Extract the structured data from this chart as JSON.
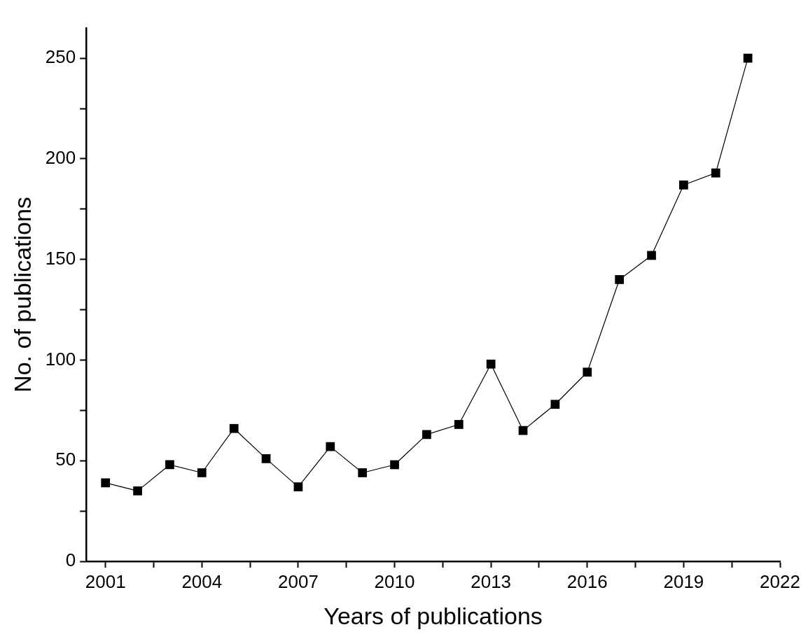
{
  "chart_data": {
    "type": "line",
    "xlabel": "Years of publications",
    "ylabel": "No. of publications",
    "x": [
      2001,
      2002,
      2003,
      2004,
      2005,
      2006,
      2007,
      2008,
      2009,
      2010,
      2011,
      2012,
      2013,
      2014,
      2015,
      2016,
      2017,
      2018,
      2019,
      2020,
      2021
    ],
    "series": [
      {
        "color": "#000000",
        "values": [
          39,
          35,
          48,
          44,
          66,
          51,
          37,
          57,
          44,
          48,
          63,
          68,
          98,
          65,
          78,
          94,
          140,
          152,
          187,
          193,
          250
        ]
      }
    ],
    "xlim": [
      2000.4,
      2022
    ],
    "xticks": [
      2001,
      {
        "value": 2002.5,
        "label": null
      },
      2004,
      {
        "value": 2005.5,
        "label": null
      },
      2007,
      {
        "value": 2008.5,
        "label": null
      },
      2010,
      {
        "value": 2011.5,
        "label": null
      },
      2013,
      {
        "value": 2014.5,
        "label": null
      },
      2016,
      {
        "value": 2017.5,
        "label": null
      },
      2019,
      {
        "value": 2020.5,
        "label": null
      },
      2022
    ],
    "ylim": [
      0,
      265
    ],
    "yticks": [
      0,
      {
        "value": 25,
        "label": null
      },
      50,
      {
        "value": 75,
        "label": null
      },
      100,
      {
        "value": 125,
        "label": null
      },
      150,
      {
        "value": 175,
        "label": null
      },
      200,
      {
        "value": 225,
        "label": null
      },
      250
    ],
    "grid": false,
    "legend": false,
    "marker": "square",
    "line_style": "solid"
  }
}
